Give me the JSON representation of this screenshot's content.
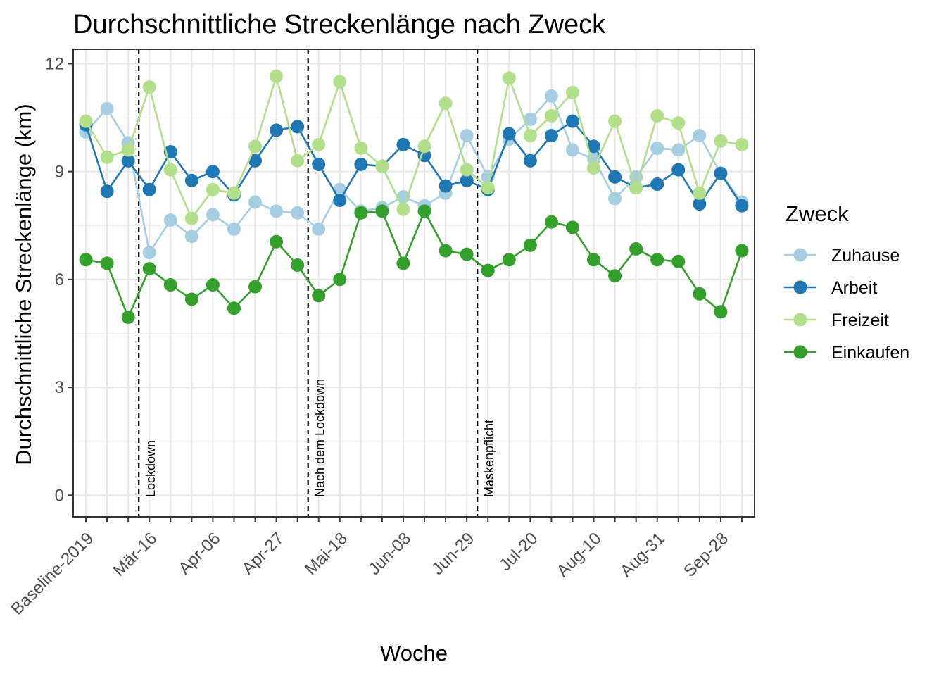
{
  "chart_data": {
    "type": "line",
    "title": "Durchschnittliche Streckenlänge nach Zweck",
    "xlabel": "Woche",
    "ylabel": "Durchschnittliche Streckenlänge (km)",
    "ylim": [
      -0.6,
      12.4
    ],
    "yticks": [
      0,
      3,
      6,
      9,
      12
    ],
    "ytick_labels": [
      "0",
      "3",
      "6",
      "9",
      "12"
    ],
    "grid": true,
    "legend": {
      "title": "Zweck",
      "placement": "right"
    },
    "x_count": 32,
    "xtick_positions": [
      0,
      3,
      6,
      9,
      12,
      15,
      18,
      21,
      24,
      27,
      30
    ],
    "xtick_labels": [
      "Baseline-2019",
      "Mär-16",
      "Apr-06",
      "Apr-27",
      "Mai-18",
      "Jun-08",
      "Jun-29",
      "Jul-20",
      "Aug-10",
      "Aug-31",
      "Sep-28"
    ],
    "vlines": [
      {
        "x": 2.5,
        "label": "Lockdown"
      },
      {
        "x": 10.5,
        "label": "Nach dem Lockdown"
      },
      {
        "x": 18.5,
        "label": "Maskenpflicht"
      }
    ],
    "series": [
      {
        "name": "Zuhause",
        "color": "#a6cee3",
        "values": [
          10.1,
          10.75,
          9.8,
          6.75,
          7.65,
          7.2,
          7.8,
          7.4,
          8.15,
          7.9,
          7.85,
          7.4,
          8.5,
          7.9,
          8.0,
          8.3,
          8.05,
          8.4,
          10.0,
          8.85,
          9.9,
          10.45,
          11.1,
          9.6,
          9.35,
          8.25,
          8.85,
          9.65,
          9.6,
          10.0,
          8.95,
          8.15
        ]
      },
      {
        "name": "Arbeit",
        "color": "#1f78b4",
        "values": [
          10.3,
          8.45,
          9.3,
          8.5,
          9.55,
          8.75,
          9.0,
          8.35,
          9.3,
          10.15,
          10.25,
          9.2,
          8.2,
          9.2,
          9.15,
          9.75,
          9.45,
          8.6,
          8.75,
          8.5,
          10.05,
          9.3,
          10.0,
          10.4,
          9.7,
          8.85,
          8.55,
          8.65,
          9.05,
          8.1,
          8.95,
          8.05
        ]
      },
      {
        "name": "Freizeit",
        "color": "#b2df8a",
        "values": [
          10.4,
          9.4,
          9.6,
          11.35,
          9.05,
          7.7,
          8.5,
          8.4,
          9.7,
          11.65,
          9.3,
          9.75,
          11.5,
          9.65,
          9.15,
          7.95,
          9.7,
          10.9,
          9.05,
          8.55,
          11.6,
          10.0,
          10.55,
          11.2,
          9.1,
          10.4,
          8.55,
          10.55,
          10.35,
          8.4,
          9.85,
          9.75
        ]
      },
      {
        "name": "Einkaufen",
        "color": "#33a02c",
        "values": [
          6.55,
          6.45,
          4.95,
          6.3,
          5.85,
          5.45,
          5.85,
          5.2,
          5.8,
          7.05,
          6.4,
          5.55,
          6.0,
          7.85,
          7.9,
          6.45,
          7.9,
          6.8,
          6.7,
          6.25,
          6.55,
          6.95,
          7.6,
          7.45,
          6.55,
          6.1,
          6.85,
          6.55,
          6.5,
          5.6,
          5.1,
          6.8
        ]
      }
    ]
  }
}
